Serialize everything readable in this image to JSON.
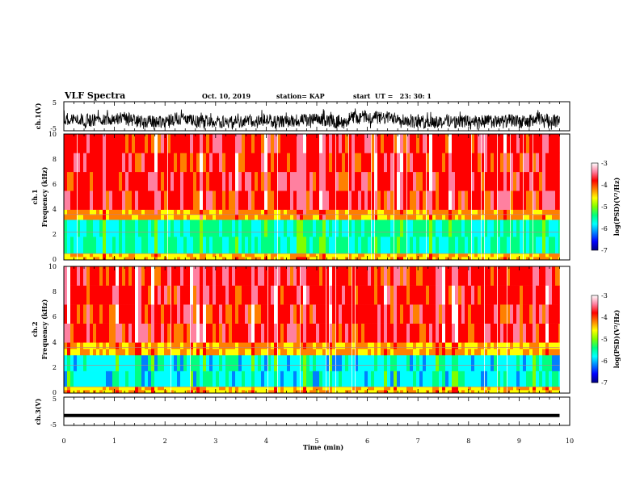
{
  "header": {
    "title": "VLF Spectra",
    "date": "Oct. 10, 2019",
    "station": "station= KAP",
    "start": "start  UT =   23: 30: 1"
  },
  "colors": {
    "colormap": [
      "#000080",
      "#0000ff",
      "#0080ff",
      "#00ffff",
      "#00ff80",
      "#80ff00",
      "#ffff00",
      "#ff8000",
      "#ff0000",
      "#ff80a0",
      "#ffffff"
    ],
    "trace": "#000000"
  },
  "chart_data": [
    {
      "type": "line",
      "panel": "ch1_waveform",
      "ylabel": "ch.1(V)",
      "ylim": [
        -5,
        5
      ],
      "yticks": [
        "5",
        "-5"
      ],
      "xlim": [
        0,
        10
      ],
      "description_values": "noisy signal around -1 V, roughly -4 to 3 V, from 0 to 9.8 min"
    },
    {
      "type": "heatmap",
      "panel": "ch1_spectrogram",
      "ylabel": "ch.1\nFrequency (kHz)",
      "ylabel_line1": "ch.1",
      "ylabel_line2": "Frequency (kHz)",
      "ylim": [
        0,
        10
      ],
      "yticks": [
        "0",
        "2",
        "4",
        "6",
        "8",
        "10"
      ],
      "xlim": [
        0,
        10
      ],
      "colorbar": {
        "label": "log(PSD)(V²/Hz)",
        "range": [
          -7,
          -3
        ],
        "ticks": [
          "-3",
          "-4",
          "-5",
          "-6",
          "-7"
        ]
      },
      "bands": [
        {
          "from_khz": 0,
          "to_khz": 0.5,
          "level": -4.5
        },
        {
          "from_khz": 0.5,
          "to_khz": 3.2,
          "level": -5.6
        },
        {
          "from_khz": 3.2,
          "to_khz": 4.0,
          "level": -4.3
        },
        {
          "from_khz": 4.0,
          "to_khz": 10,
          "level": -3.8
        }
      ]
    },
    {
      "type": "heatmap",
      "panel": "ch2_spectrogram",
      "ylabel_line1": "ch.2",
      "ylabel_line2": "Frequency (kHz)",
      "ylim": [
        0,
        10
      ],
      "yticks": [
        "0",
        "2",
        "4",
        "6",
        "8",
        "10"
      ],
      "xlim": [
        0,
        10
      ],
      "colorbar": {
        "label": "log(PSD)(V²/Hz)",
        "range": [
          -7,
          -3
        ],
        "ticks": [
          "-3",
          "-4",
          "-5",
          "-6",
          "-7"
        ]
      },
      "bands": [
        {
          "from_khz": 0,
          "to_khz": 0.5,
          "level": -4.5
        },
        {
          "from_khz": 0.5,
          "to_khz": 3.0,
          "level": -5.8
        },
        {
          "from_khz": 3.0,
          "to_khz": 4.0,
          "level": -4.4
        },
        {
          "from_khz": 4.0,
          "to_khz": 10,
          "level": -3.8
        }
      ]
    },
    {
      "type": "line",
      "panel": "ch3_waveform",
      "ylabel": "ch.3(V)",
      "ylim": [
        -5,
        5
      ],
      "yticks": [
        "5",
        "-5"
      ],
      "xlim": [
        0,
        10
      ],
      "xticks": [
        "0",
        "1",
        "2",
        "3",
        "4",
        "5",
        "6",
        "7",
        "8",
        "9",
        "10"
      ],
      "xlabel": "Time (min)",
      "x": [
        0,
        9.8
      ],
      "y": [
        -1.5,
        -1.5
      ]
    }
  ]
}
